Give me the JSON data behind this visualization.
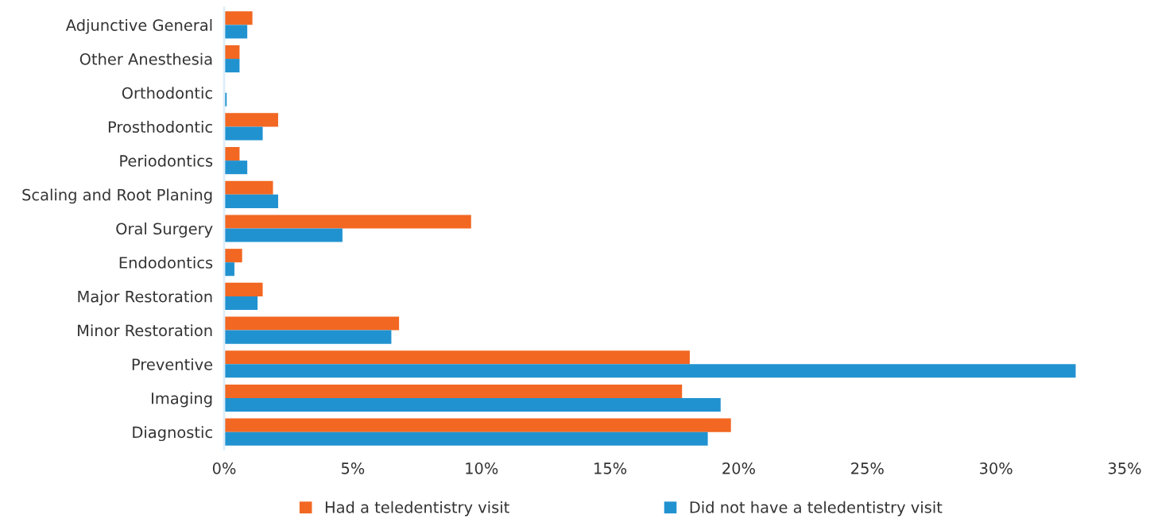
{
  "chart_data": {
    "type": "bar",
    "orientation": "horizontal",
    "categories": [
      "Adjunctive General",
      "Other Anesthesia",
      "Orthodontic",
      "Prosthodontic",
      "Periodontics",
      "Scaling and Root Planing",
      "Oral Surgery",
      "Endodontics",
      "Major Restoration",
      "Minor Restoration",
      "Preventive",
      "Imaging",
      "Diagnostic"
    ],
    "series": [
      {
        "name": "Had a teledentistry visit",
        "color": "#f26722",
        "values": [
          1.1,
          0.6,
          0,
          2.1,
          0.6,
          1.9,
          9.6,
          0.7,
          1.5,
          6.8,
          18.1,
          17.8,
          19.7
        ]
      },
      {
        "name": "Did not have a teledentistry visit",
        "color": "#2192d0",
        "values": [
          0.9,
          0.6,
          0.1,
          1.5,
          0.9,
          2.1,
          4.6,
          0.4,
          1.3,
          6.5,
          33.1,
          19.3,
          18.8
        ]
      }
    ],
    "xlim": [
      0,
      35
    ],
    "xticks": [
      {
        "value": 0,
        "label": "0%"
      },
      {
        "value": 5,
        "label": "5%"
      },
      {
        "value": 10,
        "label": "10%"
      },
      {
        "value": 15,
        "label": "15%"
      },
      {
        "value": 20,
        "label": "20%"
      },
      {
        "value": 25,
        "label": "25%"
      },
      {
        "value": 30,
        "label": "30%"
      },
      {
        "value": 35,
        "label": "35%"
      }
    ],
    "grid": false,
    "legend": "bottom"
  }
}
